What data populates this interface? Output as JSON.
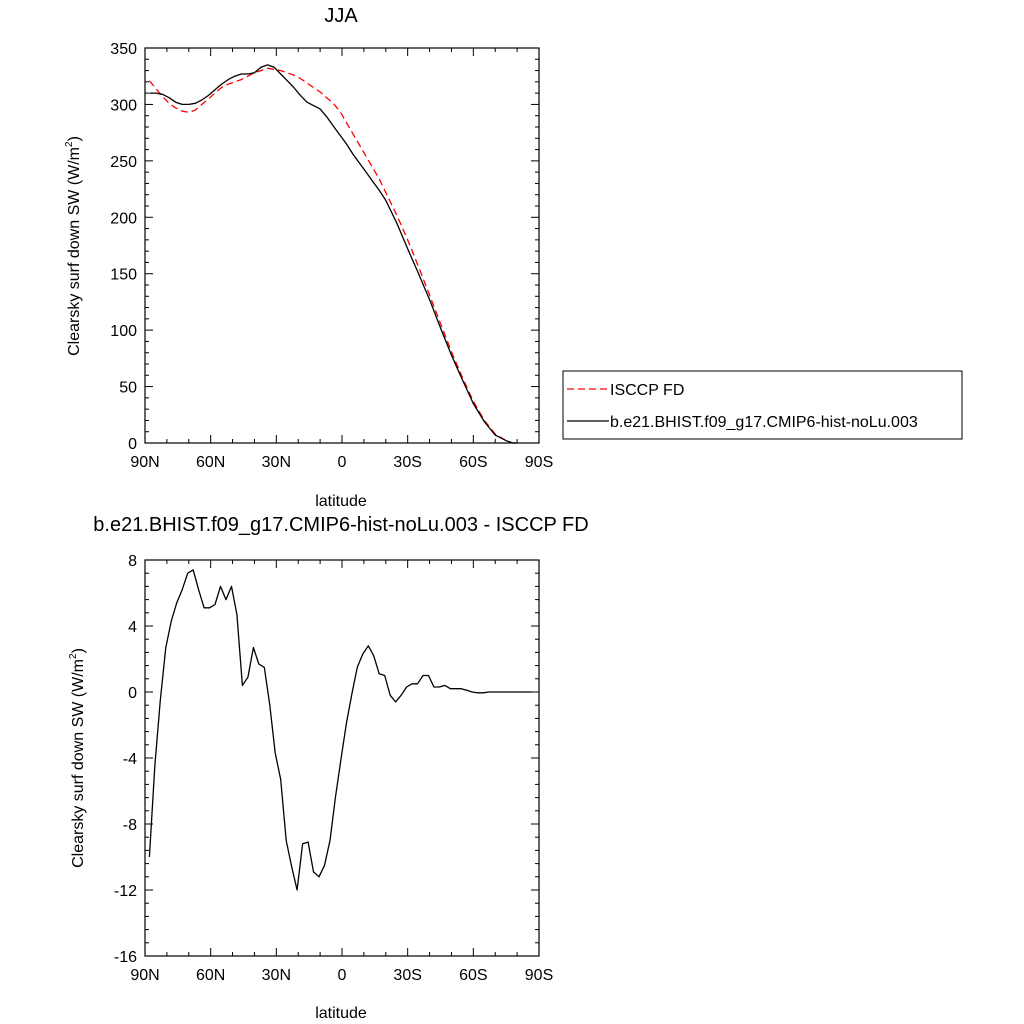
{
  "chart_data": [
    {
      "type": "line",
      "title": "JJA",
      "xlabel": "latitude",
      "ylabel": "Clearsky surf down SW (W/m",
      "ylabel_sup": "2",
      "ylabel_end": ")",
      "xlim": [
        90,
        -90
      ],
      "ylim": [
        0,
        350
      ],
      "xticks": [
        {
          "value": 90,
          "label": "90N"
        },
        {
          "value": 60,
          "label": "60N"
        },
        {
          "value": 30,
          "label": "30N"
        },
        {
          "value": 0,
          "label": "0"
        },
        {
          "value": -30,
          "label": "30S"
        },
        {
          "value": -60,
          "label": "60S"
        },
        {
          "value": -90,
          "label": "90S"
        }
      ],
      "yticks": [
        {
          "value": 0,
          "label": "0"
        },
        {
          "value": 50,
          "label": "50"
        },
        {
          "value": 100,
          "label": "100"
        },
        {
          "value": 150,
          "label": "150"
        },
        {
          "value": 200,
          "label": "200"
        },
        {
          "value": 250,
          "label": "250"
        },
        {
          "value": 300,
          "label": "300"
        },
        {
          "value": 350,
          "label": "350"
        }
      ],
      "legend": "right",
      "series": [
        {
          "name": "ISCCP FD",
          "color": "#ff0000",
          "style": "dashed",
          "x": [
            88,
            85,
            82,
            79,
            76,
            73,
            70,
            67,
            64,
            61,
            58,
            55,
            52,
            49,
            46,
            43,
            40,
            37,
            34,
            31,
            28,
            25,
            22,
            19,
            16,
            13,
            10,
            7,
            4,
            1,
            -2,
            -5,
            -8,
            -11,
            -14,
            -17,
            -20,
            -25,
            -30,
            -35,
            -40,
            -45,
            -50,
            -55,
            -60,
            -65,
            -70,
            -75,
            -78,
            -80
          ],
          "y": [
            321,
            314,
            307,
            301,
            297,
            294,
            293,
            295,
            300,
            305,
            310,
            315,
            318,
            320,
            322,
            325,
            328,
            330,
            332,
            331,
            330,
            328,
            326,
            323,
            319,
            315,
            311,
            306,
            301,
            294,
            284,
            274,
            264,
            254,
            244,
            234,
            222,
            202,
            180,
            156,
            131,
            106,
            81,
            58,
            37,
            20,
            8,
            2,
            0,
            0
          ]
        },
        {
          "name": "b.e21.BHIST.f09_g17.CMIP6-hist-noLu.003",
          "color": "#000000",
          "style": "solid",
          "x": [
            88,
            85,
            82,
            79,
            76,
            73,
            70,
            67,
            64,
            61,
            58,
            55,
            52,
            49,
            46,
            43,
            40,
            37,
            34,
            31,
            28,
            25,
            22,
            19,
            16,
            13,
            10,
            7,
            4,
            1,
            -2,
            -5,
            -8,
            -11,
            -14,
            -17,
            -20,
            -25,
            -30,
            -35,
            -40,
            -45,
            -50,
            -55,
            -60,
            -65,
            -70,
            -75,
            -78,
            -80
          ],
          "y": [
            310,
            310,
            309,
            306,
            302,
            300,
            300,
            301,
            304,
            308,
            313,
            318,
            322,
            325,
            327,
            327,
            328,
            333,
            335,
            333,
            327,
            321,
            315,
            308,
            302,
            299,
            296,
            289,
            281,
            273,
            265,
            256,
            248,
            240,
            232,
            224,
            215,
            195,
            172,
            150,
            127,
            102,
            78,
            56,
            35,
            19,
            7,
            2,
            0,
            0
          ]
        }
      ]
    },
    {
      "type": "line",
      "title": "b.e21.BHIST.f09_g17.CMIP6-hist-noLu.003 - ISCCP FD",
      "xlabel": "latitude",
      "ylabel": "Clearsky surf down SW (W/m",
      "ylabel_sup": "2",
      "ylabel_end": ")",
      "xlim": [
        90,
        -90
      ],
      "ylim": [
        -16,
        8
      ],
      "xticks": [
        {
          "value": 90,
          "label": "90N"
        },
        {
          "value": 60,
          "label": "60N"
        },
        {
          "value": 30,
          "label": "30N"
        },
        {
          "value": 0,
          "label": "0"
        },
        {
          "value": -30,
          "label": "30S"
        },
        {
          "value": -60,
          "label": "60S"
        },
        {
          "value": -90,
          "label": "90S"
        }
      ],
      "yticks": [
        {
          "value": 8,
          "label": "8"
        },
        {
          "value": 4,
          "label": "4"
        },
        {
          "value": 0,
          "label": "0"
        },
        {
          "value": -4,
          "label": "-4"
        },
        {
          "value": -8,
          "label": "-8"
        },
        {
          "value": -12,
          "label": "-12"
        },
        {
          "value": -16,
          "label": "-16"
        }
      ],
      "series": [
        {
          "color": "#000000",
          "style": "solid",
          "x": [
            88,
            85.5,
            83,
            80.5,
            78,
            75.5,
            73,
            70.5,
            68,
            65.5,
            63,
            60.5,
            58,
            55.5,
            53,
            50.5,
            48,
            45.5,
            43,
            40.5,
            38,
            35.5,
            33,
            30.5,
            28,
            25.5,
            23,
            20.5,
            18,
            15.5,
            13,
            10.5,
            8,
            5.5,
            3,
            0.5,
            -2,
            -4.5,
            -7,
            -9.5,
            -12,
            -14.5,
            -17,
            -19.5,
            -22,
            -24.5,
            -27,
            -29.5,
            -32,
            -34.5,
            -37,
            -39.5,
            -42,
            -44.5,
            -47,
            -49.5,
            -52,
            -54.5,
            -57,
            -59.5,
            -62,
            -64.5,
            -67,
            -69.5,
            -72,
            -74.5,
            -77,
            -79.5,
            -82,
            -84.5,
            -87
          ],
          "y": [
            -10,
            -4.5,
            -0.5,
            2.7,
            4.3,
            5.4,
            6.2,
            7.2,
            7.4,
            6.2,
            5.1,
            5.1,
            5.3,
            6.4,
            5.6,
            6.4,
            4.7,
            0.4,
            0.9,
            2.7,
            1.7,
            1.5,
            -0.8,
            -3.7,
            -5.3,
            -9,
            -10.6,
            -12,
            -9.2,
            -9.1,
            -10.9,
            -11.2,
            -10.5,
            -9,
            -6.4,
            -4.1,
            -1.9,
            -0.1,
            1.5,
            2.3,
            2.8,
            2.2,
            1.1,
            1.0,
            -0.2,
            -0.6,
            -0.2,
            0.3,
            0.5,
            0.5,
            1.0,
            1.0,
            0.3,
            0.3,
            0.4,
            0.2,
            0.2,
            0.2,
            0.1,
            0,
            -0.05,
            -0.05,
            0,
            0,
            0,
            0,
            0,
            0,
            0,
            0,
            0
          ]
        }
      ]
    }
  ]
}
